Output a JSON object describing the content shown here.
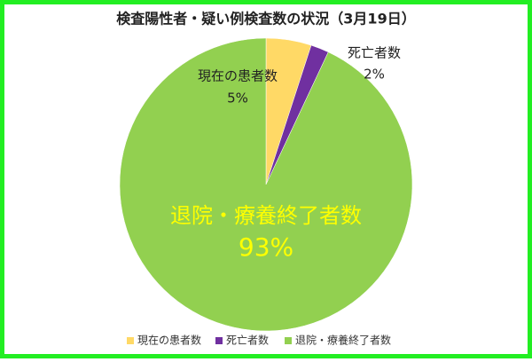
{
  "chart_data": {
    "type": "pie",
    "title": "検査陽性者・疑い例検査数の状況（3月19日）",
    "categories": [
      "現在の患者数",
      "死亡者数",
      "退院・療養終了者数"
    ],
    "values": [
      5,
      2,
      93
    ],
    "value_labels": [
      "5%",
      "2%",
      "93%"
    ],
    "colors": [
      "#ffd966",
      "#7030a0",
      "#92d050"
    ],
    "legend": "bottom"
  }
}
